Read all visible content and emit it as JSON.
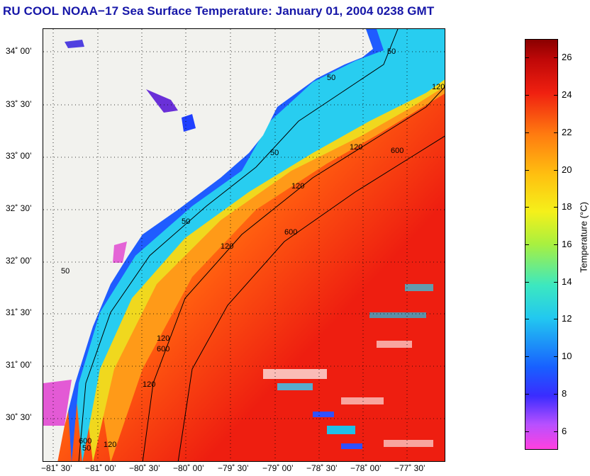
{
  "title": "RU COOL  NOAA−17  Sea Surface Temperature:  January 01, 2004 0238 GMT",
  "map": {
    "lat_ticks": [
      "34˚ 00’",
      "33˚ 30’",
      "33˚ 00’",
      "32˚ 30’",
      "32˚ 00’",
      "31˚ 30’",
      "31˚ 00’",
      "30˚ 30’"
    ],
    "lon_ticks": [
      "−81˚ 30’",
      "−81˚ 00’",
      "−80˚ 30’",
      "−80˚ 00’",
      "−79˚ 30’",
      "−79˚ 00’",
      "−78˚ 30’",
      "−78˚ 00’",
      "−77˚ 30’"
    ],
    "contour_labels": [
      "50",
      "50",
      "50",
      "50",
      "50",
      "50",
      "120",
      "120",
      "120",
      "120",
      "120",
      "120",
      "120",
      "600",
      "600",
      "600",
      "600"
    ],
    "land_color": "#f2f2ee",
    "colors": {
      "cold": "#1a3cff",
      "cool": "#22c8f0",
      "mild": "#f5e21a",
      "warm": "#ff8a10",
      "hot": "#ee1e10"
    }
  },
  "colorbar": {
    "label": "Temperature (°C)",
    "ticks": [
      "26",
      "24",
      "22",
      "20",
      "18",
      "16",
      "14",
      "12",
      "10",
      "8",
      "6"
    ],
    "range": [
      5,
      27
    ]
  }
}
